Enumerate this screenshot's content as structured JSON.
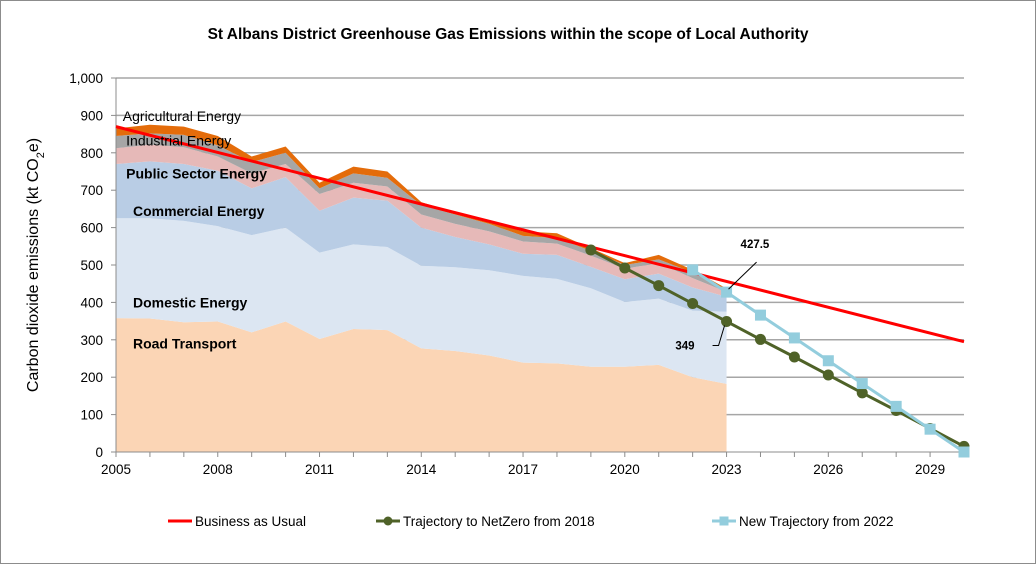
{
  "chart_data": {
    "type": "area",
    "title": "St Albans District Greenhouse Gas Emissions within the scope of Local Authority",
    "xlabel": "",
    "ylabel": "Carbon dioxide emissions (kt CO2e)",
    "ylabel_parts": {
      "pre": "Carbon dioxide emissions (kt CO",
      "sub": "2",
      "post": "e)"
    },
    "xlim": [
      2005,
      2030
    ],
    "ylim": [
      0,
      1000
    ],
    "yticks": [
      0,
      100,
      200,
      300,
      400,
      500,
      600,
      700,
      800,
      900,
      1000
    ],
    "ytick_labels": [
      "0",
      "100",
      "200",
      "300",
      "400",
      "500",
      "600",
      "700",
      "800",
      "900",
      "1,000"
    ],
    "xticks": [
      2005,
      2008,
      2011,
      2014,
      2017,
      2020,
      2023,
      2026,
      2029
    ],
    "xtick_labels": [
      "2005",
      "2008",
      "2011",
      "2014",
      "2017",
      "2020",
      "2023",
      "2026",
      "2029"
    ],
    "grid": true,
    "legend_position": "bottom",
    "stack_years": [
      2005,
      2006,
      2007,
      2008,
      2009,
      2010,
      2011,
      2012,
      2013,
      2014,
      2015,
      2016,
      2017,
      2018,
      2019,
      2020,
      2021,
      2022,
      2023
    ],
    "stacked_series": [
      {
        "name": "Domestic Energy",
        "color": "#fbd5b5",
        "label_bold": true,
        "values": [
          358,
          357,
          347,
          349,
          320,
          349,
          302,
          329,
          326,
          277,
          270,
          258,
          239,
          237,
          228,
          228,
          233,
          200,
          182
        ]
      },
      {
        "name": "Road Transport",
        "color": "#dce6f2",
        "label_bold": true,
        "values": [
          267,
          268,
          271,
          255,
          260,
          251,
          231,
          226,
          222,
          221,
          224,
          228,
          232,
          226,
          210,
          173,
          177,
          178,
          193
        ]
      },
      {
        "name": "Commercial Energy",
        "color": "#b9cde5",
        "label_bold": true,
        "values": [
          145,
          152,
          152,
          148,
          125,
          135,
          112,
          125,
          124,
          102,
          81,
          69,
          59,
          64,
          57,
          61,
          67,
          62,
          40
        ]
      },
      {
        "name": "Public Sector Energy",
        "color": "#e6b9b8",
        "label_bold": true,
        "values": [
          42,
          45,
          45,
          38,
          40,
          35,
          45,
          40,
          38,
          35,
          35,
          35,
          33,
          30,
          30,
          28,
          28,
          25,
          13
        ]
      },
      {
        "name": "Industrial Energy",
        "color": "#a6a6a6",
        "label_bold": false,
        "values": [
          33,
          30,
          33,
          30,
          30,
          30,
          15,
          25,
          23,
          25,
          25,
          20,
          15,
          15,
          13,
          10,
          10,
          15,
          5
        ]
      },
      {
        "name": "Agricultural Energy",
        "color": "#e46c0a",
        "label_bold": false,
        "values": [
          20,
          23,
          22,
          25,
          15,
          17,
          15,
          18,
          17,
          8,
          5,
          5,
          12,
          13,
          7,
          5,
          12,
          7,
          4
        ]
      }
    ],
    "line_series": [
      {
        "name": "Business as Usual",
        "color": "#ff0000",
        "marker": "none",
        "x": [
          2005,
          2030
        ],
        "values": [
          870,
          295
        ]
      },
      {
        "name": "Trajectory to NetZero from 2018",
        "color": "#4f6228",
        "marker": "circle",
        "x": [
          2019,
          2020,
          2021,
          2022,
          2023,
          2024,
          2025,
          2026,
          2027,
          2028,
          2029,
          2030
        ],
        "values": [
          540,
          492,
          445,
          397,
          349,
          301,
          254,
          206,
          158,
          111,
          63,
          15
        ]
      },
      {
        "name": "New Trajectory from 2022",
        "color": "#93cddd",
        "marker": "square",
        "x": [
          2022,
          2023,
          2024,
          2025,
          2026,
          2027,
          2028,
          2029,
          2030
        ],
        "values": [
          487,
          427.5,
          366,
          305,
          244,
          183,
          122,
          61,
          0
        ]
      }
    ],
    "annotations": [
      {
        "text": "427.5",
        "series": "New Trajectory from 2022",
        "x": 2023,
        "y": 427.5
      },
      {
        "text": "349",
        "series": "Trajectory to NetZero from 2018",
        "x": 2023,
        "y": 349
      }
    ]
  }
}
